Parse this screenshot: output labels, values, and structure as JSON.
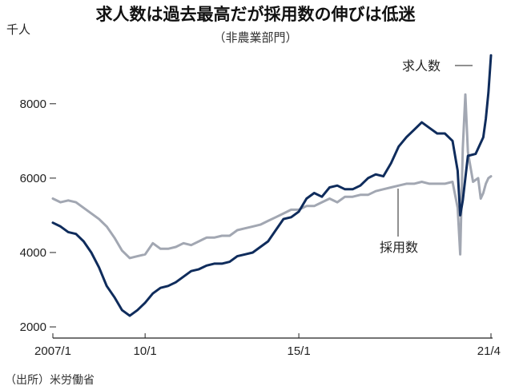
{
  "header": {
    "title": "求人数は過去最高だが採用数の伸びは低迷",
    "subtitle": "（非農業部門）",
    "unit": "千人"
  },
  "source": "（出所）米労働省",
  "colors": {
    "job_openings": "#0f2c5c",
    "hires": "#a2a7b2",
    "axis": "#222222",
    "grid": "#888888"
  },
  "chart_data": {
    "type": "line",
    "title": "求人数は過去最高だが採用数の伸びは低迷",
    "subtitle": "（非農業部門）",
    "ylabel": "千人",
    "xlabel": "",
    "x_range": [
      "2007-01",
      "2021-04"
    ],
    "ylim": [
      1700,
      9500
    ],
    "yticks": [
      2000,
      4000,
      6000,
      8000
    ],
    "xticks": [
      {
        "date": "2007-01",
        "label": "2007/1"
      },
      {
        "date": "2010-01",
        "label": "10/1"
      },
      {
        "date": "2015-01",
        "label": "15/1"
      },
      {
        "date": "2021-04",
        "label": "21/4"
      }
    ],
    "grid": false,
    "series": [
      {
        "name": "求人数",
        "points": [
          [
            "2007-01",
            4800
          ],
          [
            "2007-04",
            4700
          ],
          [
            "2007-07",
            4550
          ],
          [
            "2007-10",
            4500
          ],
          [
            "2008-01",
            4300
          ],
          [
            "2008-04",
            4000
          ],
          [
            "2008-07",
            3600
          ],
          [
            "2008-10",
            3100
          ],
          [
            "2009-01",
            2800
          ],
          [
            "2009-04",
            2450
          ],
          [
            "2009-07",
            2300
          ],
          [
            "2009-10",
            2450
          ],
          [
            "2010-01",
            2650
          ],
          [
            "2010-04",
            2900
          ],
          [
            "2010-07",
            3050
          ],
          [
            "2010-10",
            3100
          ],
          [
            "2011-01",
            3200
          ],
          [
            "2011-04",
            3350
          ],
          [
            "2011-07",
            3500
          ],
          [
            "2011-10",
            3550
          ],
          [
            "2012-01",
            3650
          ],
          [
            "2012-04",
            3700
          ],
          [
            "2012-07",
            3700
          ],
          [
            "2012-10",
            3750
          ],
          [
            "2013-01",
            3900
          ],
          [
            "2013-04",
            3950
          ],
          [
            "2013-07",
            4000
          ],
          [
            "2013-10",
            4150
          ],
          [
            "2014-01",
            4300
          ],
          [
            "2014-04",
            4600
          ],
          [
            "2014-07",
            4900
          ],
          [
            "2014-10",
            4950
          ],
          [
            "2015-01",
            5100
          ],
          [
            "2015-04",
            5450
          ],
          [
            "2015-07",
            5600
          ],
          [
            "2015-10",
            5500
          ],
          [
            "2016-01",
            5750
          ],
          [
            "2016-04",
            5800
          ],
          [
            "2016-07",
            5700
          ],
          [
            "2016-10",
            5700
          ],
          [
            "2017-01",
            5800
          ],
          [
            "2017-04",
            6000
          ],
          [
            "2017-07",
            6100
          ],
          [
            "2017-10",
            6050
          ],
          [
            "2018-01",
            6400
          ],
          [
            "2018-04",
            6850
          ],
          [
            "2018-07",
            7100
          ],
          [
            "2018-10",
            7300
          ],
          [
            "2019-01",
            7500
          ],
          [
            "2019-04",
            7350
          ],
          [
            "2019-07",
            7200
          ],
          [
            "2019-10",
            7200
          ],
          [
            "2020-01",
            7000
          ],
          [
            "2020-03",
            6200
          ],
          [
            "2020-04",
            5000
          ],
          [
            "2020-05",
            5400
          ],
          [
            "2020-07",
            6600
          ],
          [
            "2020-10",
            6650
          ],
          [
            "2021-01",
            7100
          ],
          [
            "2021-02",
            7600
          ],
          [
            "2021-03",
            8300
          ],
          [
            "2021-04",
            9300
          ]
        ]
      },
      {
        "name": "採用数",
        "points": [
          [
            "2007-01",
            5450
          ],
          [
            "2007-04",
            5350
          ],
          [
            "2007-07",
            5400
          ],
          [
            "2007-10",
            5350
          ],
          [
            "2008-01",
            5200
          ],
          [
            "2008-04",
            5050
          ],
          [
            "2008-07",
            4900
          ],
          [
            "2008-10",
            4700
          ],
          [
            "2009-01",
            4400
          ],
          [
            "2009-04",
            4050
          ],
          [
            "2009-07",
            3850
          ],
          [
            "2009-10",
            3900
          ],
          [
            "2010-01",
            3950
          ],
          [
            "2010-04",
            4250
          ],
          [
            "2010-07",
            4100
          ],
          [
            "2010-10",
            4100
          ],
          [
            "2011-01",
            4150
          ],
          [
            "2011-04",
            4250
          ],
          [
            "2011-07",
            4200
          ],
          [
            "2011-10",
            4300
          ],
          [
            "2012-01",
            4400
          ],
          [
            "2012-04",
            4400
          ],
          [
            "2012-07",
            4450
          ],
          [
            "2012-10",
            4450
          ],
          [
            "2013-01",
            4600
          ],
          [
            "2013-04",
            4650
          ],
          [
            "2013-07",
            4700
          ],
          [
            "2013-10",
            4750
          ],
          [
            "2014-01",
            4850
          ],
          [
            "2014-04",
            4950
          ],
          [
            "2014-07",
            5050
          ],
          [
            "2014-10",
            5150
          ],
          [
            "2015-01",
            5150
          ],
          [
            "2015-04",
            5250
          ],
          [
            "2015-07",
            5250
          ],
          [
            "2015-10",
            5350
          ],
          [
            "2016-01",
            5450
          ],
          [
            "2016-04",
            5350
          ],
          [
            "2016-07",
            5500
          ],
          [
            "2016-10",
            5500
          ],
          [
            "2017-01",
            5550
          ],
          [
            "2017-04",
            5550
          ],
          [
            "2017-07",
            5650
          ],
          [
            "2017-10",
            5700
          ],
          [
            "2018-01",
            5750
          ],
          [
            "2018-04",
            5800
          ],
          [
            "2018-07",
            5850
          ],
          [
            "2018-10",
            5850
          ],
          [
            "2019-01",
            5900
          ],
          [
            "2019-04",
            5850
          ],
          [
            "2019-07",
            5850
          ],
          [
            "2019-10",
            5850
          ],
          [
            "2020-01",
            5900
          ],
          [
            "2020-03",
            5200
          ],
          [
            "2020-04",
            3950
          ],
          [
            "2020-05",
            6800
          ],
          [
            "2020-06",
            8250
          ],
          [
            "2020-07",
            6700
          ],
          [
            "2020-09",
            5900
          ],
          [
            "2020-11",
            6000
          ],
          [
            "2020-12",
            5450
          ],
          [
            "2021-01",
            5600
          ],
          [
            "2021-02",
            5850
          ],
          [
            "2021-03",
            6000
          ],
          [
            "2021-04",
            6050
          ]
        ]
      }
    ]
  },
  "labels": {
    "job_openings": "求人数",
    "hires": "採用数"
  }
}
